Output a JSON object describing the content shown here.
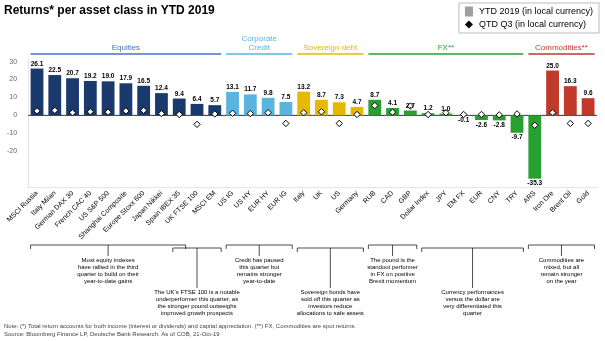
{
  "chart_data": {
    "type": "bar",
    "title": "Returns* per asset class in YTD 2019",
    "categories": [
      "MSCI Russia",
      "Italy Milan",
      "German DAX 30",
      "French CAC 40",
      "US S&P 500",
      "Shanghai Composite",
      "Europe Stoxx 600",
      "Japan Nikkei",
      "Spain IBEX 35",
      "UK FTSE 100",
      "MSCI EM",
      "US IG",
      "US HY",
      "EUR HY",
      "EUR IG",
      "Italy",
      "UK",
      "US",
      "Germany",
      "RUB",
      "CAD",
      "GBP",
      "Dollar Index",
      "JPY",
      "EM FX",
      "EUR",
      "CNY",
      "TRY",
      "ARS",
      "Iron Ore",
      "Brent Oil",
      "Gold"
    ],
    "series": [
      {
        "name": "YTD 2019 (in local currency)",
        "type": "bar",
        "color": "#9e9e9e",
        "colors": [
          "#1a3a6e",
          "#1a3a6e",
          "#1a3a6e",
          "#1a3a6e",
          "#1a3a6e",
          "#1a3a6e",
          "#1a3a6e",
          "#1a3a6e",
          "#1a3a6e",
          "#1a3a6e",
          "#1a3a6e",
          "#5ab4e0",
          "#5ab4e0",
          "#5ab4e0",
          "#5ab4e0",
          "#e6b800",
          "#e6b800",
          "#e6b800",
          "#e6b800",
          "#27a030",
          "#27a030",
          "#27a030",
          "#27a030",
          "#27a030",
          "#27a030",
          "#27a030",
          "#27a030",
          "#27a030",
          "#27a030",
          "#c0392b",
          "#c0392b",
          "#c0392b"
        ],
        "values": [
          26.1,
          22.5,
          20.7,
          19.2,
          19.0,
          17.9,
          16.5,
          12.4,
          9.4,
          6.4,
          5.7,
          13.1,
          11.7,
          9.8,
          7.5,
          13.2,
          8.7,
          7.3,
          4.7,
          8.7,
          4.1,
          2.7,
          1.2,
          1.0,
          -0.1,
          -2.6,
          -2.8,
          -9.7,
          -35.3,
          25.0,
          16.3,
          9.6
        ],
        "value_labels": [
          "26.1",
          "22.5",
          "20.7",
          "19.2",
          "19.0",
          "17.9",
          "16.5",
          "12.4",
          "9.4",
          "6.4",
          "5.7",
          "13.1",
          "11.7",
          "9.8",
          "7.5",
          "13.2",
          "8.7",
          "7.3",
          "4.7",
          "8.7",
          "4.1",
          "2.7",
          "1.2",
          "1.0",
          "-0.1",
          "-2.6",
          "-2.8",
          "-9.7",
          "-35.3",
          "25.0",
          "16.3",
          "9.6"
        ]
      },
      {
        "name": "QTD Q3 (in local currency)",
        "type": "line",
        "line_style": "none",
        "marker": "diamond",
        "color": "#000000",
        "values": [
          2.5,
          2.8,
          1.5,
          2.0,
          1.8,
          2.5,
          2.8,
          1.0,
          0.5,
          -5.0,
          0.8,
          1.2,
          1.0,
          1.5,
          -4.5,
          1.5,
          2.0,
          -4.5,
          0.5,
          5.5,
          1.8,
          5.2,
          0.5,
          1.5,
          0.5,
          0.5,
          0.3,
          0.8,
          -5.5,
          1.5,
          -4.5,
          -4.5
        ]
      }
    ],
    "ylim": [
      -40,
      32
    ],
    "yticks": [
      -20,
      -10,
      0,
      10,
      20,
      30
    ],
    "grid": false,
    "legend": "top-right",
    "data_labels": true,
    "sections": [
      {
        "label": "Equities",
        "start": "MSCI Russia",
        "end": "MSCI EM",
        "color": "#4472c4"
      },
      {
        "label": "Corporate\nCredit",
        "start": "US IG",
        "end": "EUR IG",
        "color": "#5ab4e0"
      },
      {
        "label": "Sovereign debt",
        "start": "Italy",
        "end": "Germany",
        "color": "#e6b800"
      },
      {
        "label": "FX**",
        "start": "RUB",
        "end": "TRY",
        "color": "#27a030"
      },
      {
        "label": "Commodities**",
        "start": "ARS",
        "end": "Gold",
        "color": "#c0392b"
      }
    ],
    "annotations": [
      {
        "start": "MSCI Russia",
        "end": "Spain IBEX 35",
        "text": "Most equity indexes\nhave rallied in the third\nquarter to build on their\nyear-to-date gains"
      },
      {
        "start": "Spain IBEX 35",
        "end": "MSCI EM",
        "text": "The UK's FTSE 100 is a notable\nunderperformer this quarter, as\nthe stronger pound outweighs\nimproved growth prospects"
      },
      {
        "start": "US IG",
        "end": "EUR IG",
        "text": "Credit has paused\nthis quarter but\nremains stronger\nyear-to-date"
      },
      {
        "start": "Italy",
        "end": "Germany",
        "text": "Sovereign bonds have\nsold off this quarter as\ninvestors reduce\nallocations to safe assets"
      },
      {
        "start": "RUB",
        "end": "GBP",
        "text": "The pound is the\nstandout performer\nin FX on positive\nBrexit momentum"
      },
      {
        "start": "Dollar Index",
        "end": "TRY",
        "text": "Currency performances\nversus the dollar are\nvery differentiated this\nquarter"
      },
      {
        "start": "ARS",
        "end": "Gold",
        "text": "Commodities are\nmixed, but all\nremain stronger\non the year"
      }
    ],
    "footnotes": [
      "Note: (*) Total return accounts for both income (interest or dividends) and capital appreciation. (**) FX, Commodities are spot returns.",
      "Source: Bloomberg Finance LP, Deutsche Bank Research. As of COB, 21-Oct-19"
    ]
  }
}
